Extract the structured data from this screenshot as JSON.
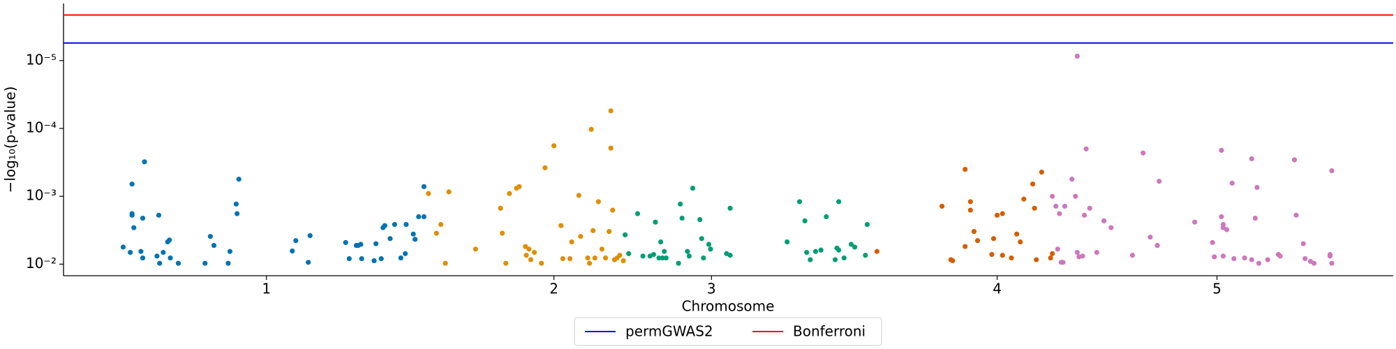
{
  "chart_data": {
    "type": "scatter",
    "xlabel": "Chromosome",
    "ylabel": "−log₁₀(p-value)",
    "xlim": [
      0,
      1494
    ],
    "xticks": [
      {
        "value": 228,
        "label": "1"
      },
      {
        "value": 551,
        "label": "2"
      },
      {
        "value": 728,
        "label": "3"
      },
      {
        "value": 1049,
        "label": "4"
      },
      {
        "value": 1296,
        "label": "5"
      }
    ],
    "ylog": true,
    "ylim": [
      0.0148,
      1.44e-06
    ],
    "yticks": [
      {
        "value": 0.01,
        "label": "10⁻²"
      },
      {
        "value": 0.001,
        "label": "10⁻³"
      },
      {
        "value": 0.0001,
        "label": "10⁻⁴"
      },
      {
        "value": 1e-05,
        "label": "10⁻⁵"
      }
    ],
    "series": [
      {
        "color": "#0173b2",
        "x": [
          67,
          75,
          77,
          77,
          77,
          79,
          91,
          87,
          89,
          89,
          105,
          107,
          108,
          112,
          117,
          119,
          120,
          129,
          159,
          165,
          169,
          185,
          187,
          194,
          195,
          197,
          257,
          261,
          275,
          277,
          317,
          321,
          329,
          331,
          334,
          335,
          349,
          351,
          357,
          359,
          361,
          367,
          372,
          379,
          384,
          385,
          393,
          395,
          399,
          405,
          405
        ],
        "values": [
          0.0056,
          0.0067,
          0.00066,
          0.0019,
          0.0018,
          0.0029,
          0.00031,
          0.0065,
          0.0081,
          0.0021,
          0.0076,
          0.0019,
          0.0097,
          0.0067,
          0.0047,
          0.0044,
          0.0081,
          0.0097,
          0.0097,
          0.0039,
          0.0053,
          0.0097,
          0.0065,
          0.0013,
          0.0018,
          0.00056,
          0.0064,
          0.0045,
          0.0094,
          0.0038,
          0.0048,
          0.0083,
          0.0053,
          0.0053,
          0.0051,
          0.0083,
          0.0089,
          0.005,
          0.0083,
          0.0029,
          0.0027,
          0.0042,
          0.0026,
          0.0081,
          0.007,
          0.0026,
          0.0036,
          0.0043,
          0.002,
          0.002,
          0.00072
        ]
      },
      {
        "color": "#de8f05",
        "x": [
          410,
          419,
          424,
          429,
          433,
          463,
          491,
          493,
          497,
          501,
          509,
          512,
          519,
          520,
          523,
          525,
          529,
          537,
          541,
          551,
          559,
          561,
          569,
          571,
          579,
          581,
          589,
          591,
          593,
          595,
          597,
          601,
          605,
          609,
          613,
          615,
          615,
          617,
          619,
          622,
          625,
          629
        ],
        "values": [
          0.00091,
          0.0035,
          0.0026,
          0.0097,
          0.00086,
          0.006,
          0.0015,
          0.0035,
          0.0097,
          0.00091,
          0.00076,
          0.00072,
          0.0055,
          0.0074,
          0.006,
          0.0086,
          0.0067,
          0.0097,
          0.00038,
          0.00018,
          0.0027,
          0.0083,
          0.0083,
          0.0047,
          0.00097,
          0.0039,
          0.0081,
          0.0097,
          0.000103,
          0.0032,
          0.0081,
          0.0012,
          0.006,
          0.0081,
          0.0033,
          0.000195,
          5.5e-05,
          0.0016,
          0.0086,
          0.0081,
          0.0074,
          0.0089
        ]
      },
      {
        "color": "#029e73",
        "x": [
          631,
          635,
          645,
          651,
          659,
          663,
          665,
          669,
          671,
          673,
          675,
          677,
          691,
          693,
          695,
          701,
          703,
          707,
          715,
          717,
          719,
          725,
          727,
          745,
          749,
          749,
          813,
          827,
          833,
          835,
          839,
          845,
          851,
          857,
          867,
          869,
          871,
          871,
          877,
          885,
          889,
          901,
          903
        ],
        "values": [
          0.0037,
          0.007,
          0.0018,
          0.0076,
          0.0076,
          0.0072,
          0.0024,
          0.0081,
          0.0047,
          0.0081,
          0.0065,
          0.0081,
          0.0097,
          0.0013,
          0.0021,
          0.0065,
          0.0076,
          0.00076,
          0.0022,
          0.0042,
          0.0081,
          0.0051,
          0.006,
          0.007,
          0.0074,
          0.0015,
          0.0047,
          0.0012,
          0.0023,
          0.0067,
          0.0086,
          0.0065,
          0.0062,
          0.002,
          0.0086,
          0.0058,
          0.0012,
          0.0062,
          0.0081,
          0.0051,
          0.0056,
          0.0074,
          0.0026
        ]
      },
      {
        "color": "#d55e00",
        "x": [
          914,
          987,
          997,
          999,
          1013,
          1013,
          1019,
          1019,
          1023,
          1027,
          1043,
          1045,
          1049,
          1055,
          1055,
          1065,
          1071,
          1075,
          1079,
          1089,
          1091,
          1093,
          1099,
          1109,
          1111
        ],
        "values": [
          0.0065,
          0.0014,
          0.0086,
          0.0089,
          0.0055,
          0.0004,
          0.0012,
          0.0016,
          0.0033,
          0.0045,
          0.0072,
          0.0042,
          0.0019,
          0.0018,
          0.0074,
          0.0081,
          0.0036,
          0.0047,
          0.0011,
          0.00066,
          0.0015,
          0.0086,
          0.00044,
          0.0081,
          0.007
        ]
      },
      {
        "color": "#cc78bc",
        "x": [
          1111,
          1115,
          1117,
          1119,
          1121,
          1123,
          1125,
          1133,
          1137,
          1139,
          1139,
          1141,
          1145,
          1147,
          1149,
          1153,
          1161,
          1169,
          1177,
          1201,
          1213,
          1221,
          1229,
          1231,
          1271,
          1291,
          1293,
          1301,
          1301,
          1303,
          1303,
          1303,
          1307,
          1313,
          1315,
          1327,
          1335,
          1335,
          1339,
          1341,
          1343,
          1353,
          1365,
          1367,
          1383,
          1385,
          1393,
          1395,
          1401,
          1405,
          1423,
          1423,
          1425,
          1425
        ],
        "values": [
          0.001,
          0.0014,
          0.006,
          0.0018,
          0.0094,
          0.0094,
          0.0014,
          0.00056,
          0.001,
          8.6e-06,
          0.0067,
          0.0078,
          0.0076,
          0.0019,
          0.0002,
          0.0015,
          0.0067,
          0.0023,
          0.0029,
          0.0074,
          0.00023,
          0.004,
          0.0053,
          0.0006,
          0.0024,
          0.0048,
          0.0078,
          0.00021,
          0.002,
          0.0076,
          0.0029,
          0.0026,
          0.0031,
          0.00064,
          0.0083,
          0.0081,
          0.00028,
          0.0086,
          0.0021,
          0.00074,
          0.0097,
          0.0086,
          0.0072,
          0.0076,
          0.00029,
          0.0019,
          0.005,
          0.0083,
          0.0091,
          0.0097,
          0.0072,
          0.0076,
          0.00042,
          0.0097
        ]
      }
    ],
    "thresholds": [
      {
        "name": "permGWAS2",
        "value": 5.5e-06,
        "color": "#0000ff"
      },
      {
        "name": "Bonferroni",
        "value": 2.13e-06,
        "color": "#ff0000"
      }
    ],
    "legend": "bottom-center"
  }
}
